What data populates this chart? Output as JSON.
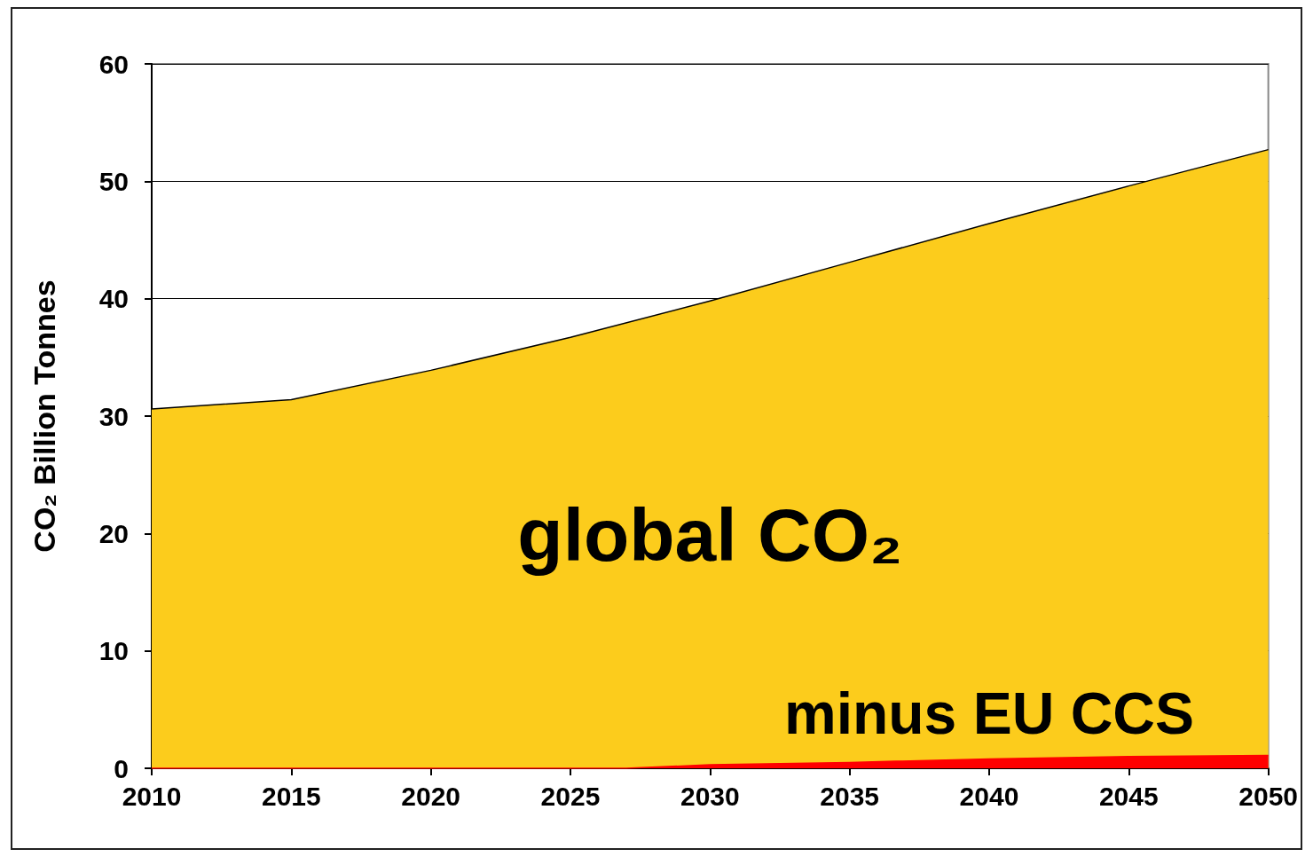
{
  "chart_data": {
    "type": "area",
    "ylabel": "CO₂ Billion Tonnes",
    "xlim": [
      2010,
      2050
    ],
    "xticks": [
      2010,
      2015,
      2020,
      2025,
      2030,
      2035,
      2040,
      2045,
      2050
    ],
    "ylim": [
      0,
      60
    ],
    "yticks": [
      0,
      10,
      20,
      30,
      40,
      50,
      60
    ],
    "grid": "y",
    "legend": false,
    "marker": "none",
    "series": [
      {
        "name": "global CO₂",
        "color": "#fccc1c",
        "x": [
          2010,
          2015,
          2020,
          2025,
          2030,
          2035,
          2040,
          2045,
          2050
        ],
        "values": [
          30.6,
          31.4,
          33.9,
          36.7,
          39.8,
          43.1,
          46.4,
          49.6,
          52.7
        ]
      },
      {
        "name": "minus EU CCS",
        "color": "#ff0000",
        "x": [
          2010,
          2015,
          2020,
          2025,
          2027,
          2030,
          2035,
          2040,
          2045,
          2050
        ],
        "values": [
          0,
          0,
          0,
          0,
          0,
          0.3,
          0.5,
          0.8,
          1.0,
          1.1
        ]
      }
    ]
  }
}
